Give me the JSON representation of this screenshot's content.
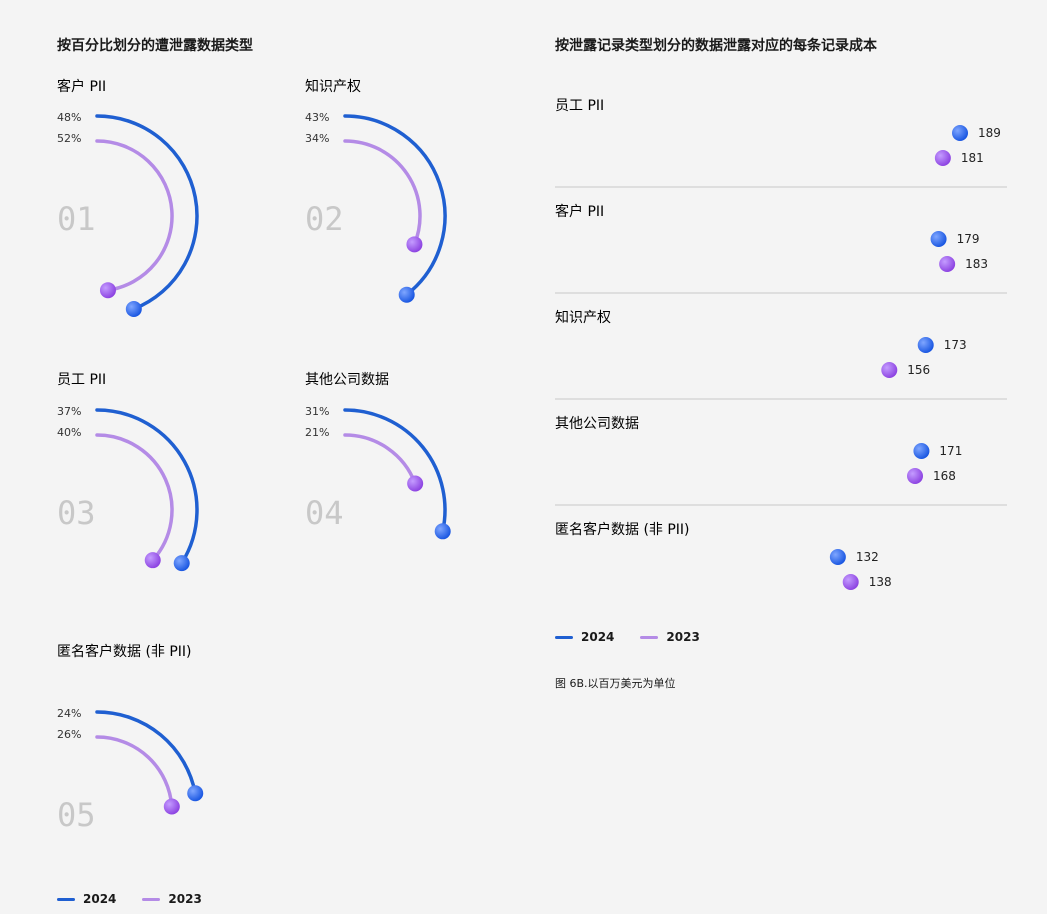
{
  "colors": {
    "s2024": "#1f5fd1",
    "s2023": "#b48be6",
    "dot2024": "#1553e0",
    "dot2023": "#8a3fe0"
  },
  "left": {
    "title": "按百分比划分的遭泄露数据类型",
    "legend": {
      "s2024": "2024",
      "s2023": "2023"
    }
  },
  "right": {
    "title": "按泄露记录类型划分的数据泄露对应的每条记录成本",
    "legend": {
      "s2024": "2024",
      "s2023": "2023"
    },
    "caption": "图 6B.以百万美元为单位"
  },
  "chart_data": [
    {
      "type": "radial-bar",
      "title": "按百分比划分的遭泄露数据类型",
      "series_names": [
        "2024",
        "2023"
      ],
      "unit": "%",
      "categories": [
        {
          "index": "01",
          "label": "客户 PII",
          "v2024": 48,
          "v2023": 52
        },
        {
          "index": "02",
          "label": "知识产权",
          "v2024": 43,
          "v2023": 34
        },
        {
          "index": "03",
          "label": "员工 PII",
          "v2024": 37,
          "v2023": 40
        },
        {
          "index": "04",
          "label": "其他公司数据",
          "v2024": 31,
          "v2023": 21
        },
        {
          "index": "05",
          "label": "匿名客户数据 (非 PII)",
          "v2024": 24,
          "v2023": 26
        }
      ]
    },
    {
      "type": "bar",
      "orientation": "horizontal",
      "title": "按泄露记录类型划分的数据泄露对应的每条记录成本",
      "categories": [
        "员工 PII",
        "客户 PII",
        "知识产权",
        "其他公司数据",
        "匿名客户数据 (非 PII)"
      ],
      "series": [
        {
          "name": "2024",
          "values": [
            189,
            179,
            173,
            171,
            132
          ]
        },
        {
          "name": "2023",
          "values": [
            181,
            183,
            156,
            168,
            138
          ]
        }
      ]
    }
  ]
}
